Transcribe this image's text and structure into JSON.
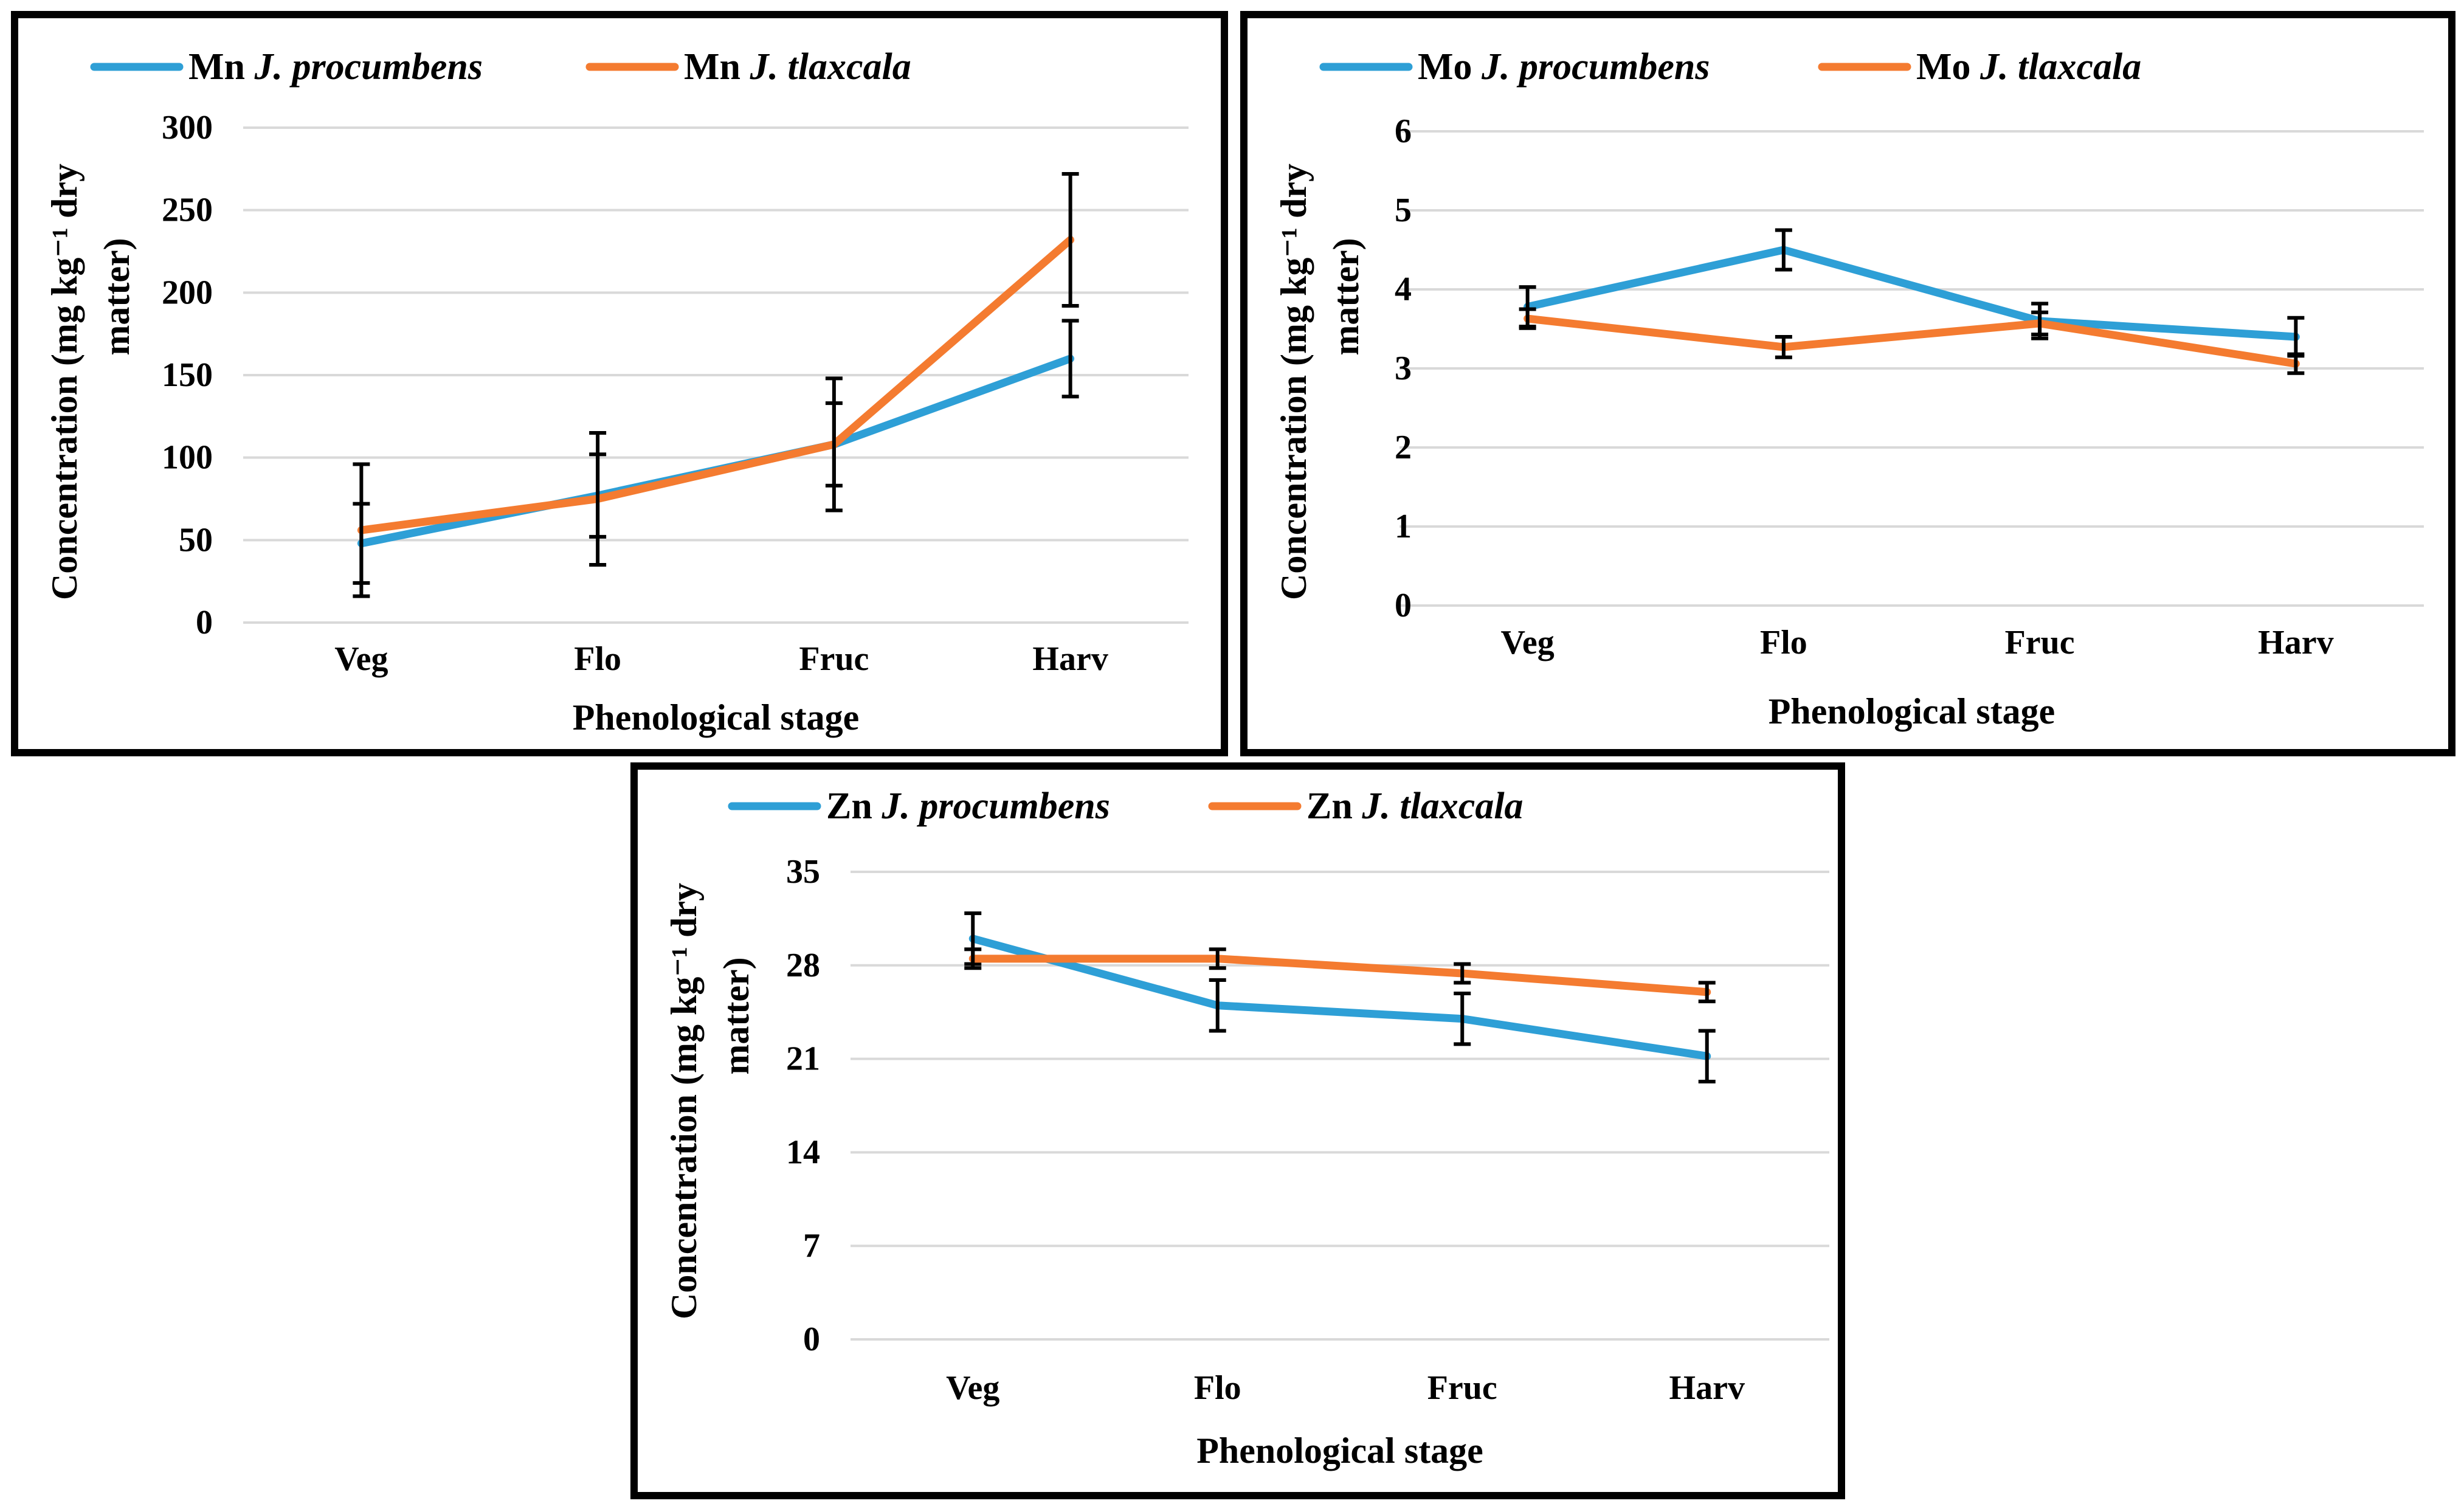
{
  "colors": {
    "series_1": "#2E9FD6",
    "series_2": "#F47B30",
    "grid": "#D9D9D9",
    "error_bar": "#000000"
  },
  "chart_data": [
    {
      "type": "line",
      "panel": "mn",
      "categories": [
        "Veg",
        "Flo",
        "Fruc",
        "Harv"
      ],
      "xlabel": "Phenological stage",
      "ylabel_line1": "Concentration (mg kg⁻¹ dry",
      "ylabel_line2": "matter)",
      "ylim": [
        0,
        300
      ],
      "yticks": [
        0,
        50,
        100,
        150,
        200,
        250,
        300
      ],
      "legend_position": "top",
      "series": [
        {
          "name": "Mn",
          "species": "J. procumbens",
          "values": [
            48,
            77,
            108,
            160
          ],
          "errors": [
            24,
            25,
            25,
            23
          ]
        },
        {
          "name": "Mn",
          "species": "J. tlaxcala",
          "values": [
            56,
            75,
            108,
            232
          ],
          "errors": [
            40,
            40,
            40,
            40
          ]
        }
      ]
    },
    {
      "type": "line",
      "panel": "mo",
      "categories": [
        "Veg",
        "Flo",
        "Fruc",
        "Harv"
      ],
      "xlabel": "Phenological stage",
      "ylabel_line1": "Concentration (mg kg⁻¹ dry",
      "ylabel_line2": "matter)",
      "ylim": [
        0,
        6
      ],
      "yticks": [
        0,
        1,
        2,
        3,
        4,
        5,
        6
      ],
      "legend_position": "top",
      "series": [
        {
          "name": "Mo",
          "species": "J. procumbens",
          "values": [
            3.78,
            4.5,
            3.6,
            3.4
          ],
          "errors": [
            0.25,
            0.25,
            0.22,
            0.24
          ]
        },
        {
          "name": "Mo",
          "species": "J. tlaxcala",
          "values": [
            3.63,
            3.27,
            3.57,
            3.06
          ],
          "errors": [
            0.12,
            0.13,
            0.14,
            0.12
          ]
        }
      ]
    },
    {
      "type": "line",
      "panel": "zn",
      "categories": [
        "Veg",
        "Flo",
        "Fruc",
        "Harv"
      ],
      "xlabel": "Phenological stage",
      "ylabel_line1": "Concentration (mg kg⁻¹ dry",
      "ylabel_line2": "matter)",
      "ylim": [
        0,
        35
      ],
      "yticks": [
        0,
        7,
        14,
        21,
        28,
        35
      ],
      "legend_position": "top",
      "series": [
        {
          "name": "Zn",
          "species": "J. procumbens",
          "values": [
            30,
            25,
            24,
            21.2
          ],
          "errors": [
            1.9,
            1.9,
            1.9,
            1.9
          ]
        },
        {
          "name": "Zn",
          "species": "J. tlaxcala",
          "values": [
            28.5,
            28.5,
            27.4,
            26
          ],
          "errors": [
            0.7,
            0.7,
            0.7,
            0.7
          ]
        }
      ]
    }
  ]
}
